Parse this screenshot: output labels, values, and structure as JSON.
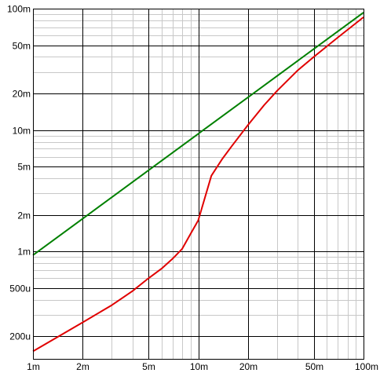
{
  "chart_data": {
    "type": "line",
    "title": "",
    "xlabel": "",
    "ylabel": "",
    "x_scale": "log",
    "y_scale": "log",
    "xlim": [
      0.001,
      0.1
    ],
    "ylim": [
      0.00013,
      0.1
    ],
    "grid": true,
    "legend": "none",
    "x_ticks": [
      {
        "value": 0.001,
        "label": "1m"
      },
      {
        "value": 0.002,
        "label": "2m"
      },
      {
        "value": 0.005,
        "label": "5m"
      },
      {
        "value": 0.01,
        "label": "10m"
      },
      {
        "value": 0.02,
        "label": "20m"
      },
      {
        "value": 0.05,
        "label": "50m"
      },
      {
        "value": 0.1,
        "label": "100m"
      }
    ],
    "y_ticks": [
      {
        "value": 0.1,
        "label": "100m"
      },
      {
        "value": 0.05,
        "label": "50m"
      },
      {
        "value": 0.02,
        "label": "20m"
      },
      {
        "value": 0.01,
        "label": "10m"
      },
      {
        "value": 0.005,
        "label": "5m"
      },
      {
        "value": 0.002,
        "label": "2m"
      },
      {
        "value": 0.001,
        "label": "1m"
      },
      {
        "value": 0.0005,
        "label": "500u"
      },
      {
        "value": 0.0002,
        "label": "200u"
      }
    ],
    "series": [
      {
        "color": "#008000",
        "x": [
          0.001,
          0.002,
          0.005,
          0.01,
          0.02,
          0.05,
          0.1
        ],
        "y": [
          0.00093,
          0.00186,
          0.00465,
          0.0093,
          0.0186,
          0.0465,
          0.093
        ]
      },
      {
        "color": "#e00000",
        "x": [
          0.001,
          0.002,
          0.003,
          0.004,
          0.005,
          0.006,
          0.007,
          0.008,
          0.009,
          0.01,
          0.012,
          0.014,
          0.016,
          0.02,
          0.025,
          0.03,
          0.04,
          0.05,
          0.07,
          0.1
        ],
        "y": [
          0.00015,
          0.00026,
          0.00036,
          0.00047,
          0.0006,
          0.00072,
          0.00087,
          0.00105,
          0.0014,
          0.0018,
          0.0042,
          0.0058,
          0.0074,
          0.011,
          0.016,
          0.021,
          0.031,
          0.04,
          0.058,
          0.085
        ]
      }
    ]
  }
}
